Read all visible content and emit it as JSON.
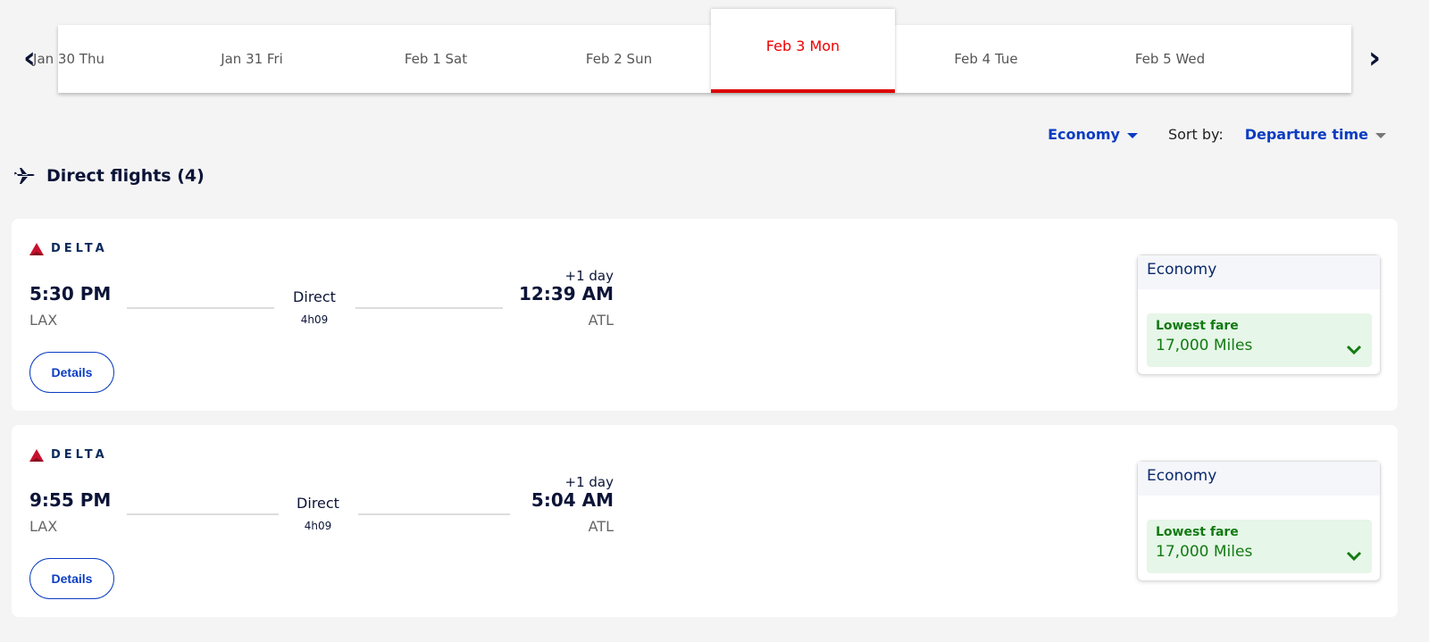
{
  "date_strip": {
    "tabs": [
      "Jan 30 Thu",
      "Jan 31 Fri",
      "Feb 1 Sat",
      "Feb 2 Sun",
      "Feb 3 Mon",
      "Feb 4 Tue",
      "Feb 5 Wed"
    ],
    "active": "Feb 3 Mon",
    "prev_icon": "‹",
    "next_icon": "›"
  },
  "filters": {
    "cabin": "Economy",
    "sort_label": "Sort by:",
    "sort_value": "Departure time"
  },
  "heading": "Direct flights (4)",
  "colors": {
    "accent": "#0a3cc2",
    "active_tab": "#e00000",
    "fare_green": "#137a13"
  },
  "flights": [
    {
      "airline": "DELTA",
      "depart": "5:30 PM",
      "from": "LAX",
      "type": "Direct",
      "duration": "4h09",
      "arrive": "12:39 AM",
      "to": "ATL",
      "day_offset": "+1 day",
      "details": "Details",
      "fare_cabin": "Economy",
      "fare_label": "Lowest fare",
      "fare_price": "17,000 Miles"
    },
    {
      "airline": "DELTA",
      "depart": "9:55 PM",
      "from": "LAX",
      "type": "Direct",
      "duration": "4h09",
      "arrive": "5:04 AM",
      "to": "ATL",
      "day_offset": "+1 day",
      "details": "Details",
      "fare_cabin": "Economy",
      "fare_label": "Lowest fare",
      "fare_price": "17,000 Miles"
    }
  ]
}
